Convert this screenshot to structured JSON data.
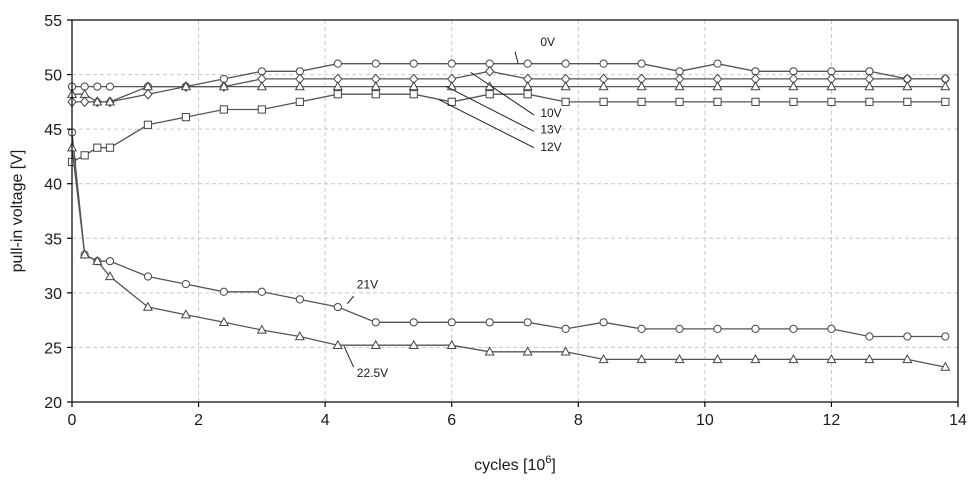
{
  "chart_data": {
    "type": "line",
    "title": "",
    "xlabel": "cycles [10",
    "xlabel_sup": "6",
    "xlabel_end": "]",
    "ylabel": "pull-in voltage [V]",
    "xlim": [
      0,
      14
    ],
    "ylim": [
      20,
      55
    ],
    "xticks": [
      0,
      2,
      4,
      6,
      8,
      10,
      12,
      14
    ],
    "yticks": [
      20,
      25,
      30,
      35,
      40,
      45,
      50,
      55
    ],
    "grid": true,
    "legend": "none",
    "series": [
      {
        "name": "0V",
        "marker": "circle",
        "x": [
          0,
          0.2,
          0.4,
          0.6,
          1.2,
          1.8,
          2.4,
          3.0,
          3.6,
          4.2,
          4.8,
          5.4,
          6.0,
          6.6,
          7.2,
          7.8,
          8.4,
          9.0,
          9.6,
          10.2,
          10.8,
          11.4,
          12.0,
          12.6,
          13.2,
          13.8
        ],
        "y": [
          48.9,
          48.9,
          48.9,
          48.9,
          48.9,
          48.9,
          49.6,
          50.3,
          50.3,
          51.0,
          51.0,
          51.0,
          51.0,
          51.0,
          51.0,
          51.0,
          51.0,
          51.0,
          50.3,
          51.0,
          50.3,
          50.3,
          50.3,
          50.3,
          49.6,
          49.6
        ]
      },
      {
        "name": "10V",
        "marker": "diamond",
        "x": [
          0,
          0.2,
          0.4,
          0.6,
          1.2,
          1.8,
          2.4,
          3.0,
          3.6,
          4.2,
          4.8,
          5.4,
          6.0,
          6.6,
          7.2,
          7.8,
          8.4,
          9.0,
          9.6,
          10.2,
          10.8,
          11.4,
          12.0,
          12.6,
          13.2,
          13.8
        ],
        "y": [
          47.5,
          47.5,
          47.5,
          47.5,
          48.2,
          48.9,
          48.9,
          49.6,
          49.6,
          49.6,
          49.6,
          49.6,
          49.6,
          50.3,
          49.6,
          49.6,
          49.6,
          49.6,
          49.6,
          49.6,
          49.6,
          49.6,
          49.6,
          49.6,
          49.6,
          49.6
        ]
      },
      {
        "name": "13V",
        "marker": "triangle",
        "x": [
          0,
          0.2,
          0.4,
          0.6,
          1.2,
          1.8,
          2.4,
          3.0,
          3.6,
          4.2,
          4.8,
          5.4,
          6.0,
          6.6,
          7.2,
          7.8,
          8.4,
          9.0,
          9.6,
          10.2,
          10.8,
          11.4,
          12.0,
          12.6,
          13.2,
          13.8
        ],
        "y": [
          48.2,
          48.2,
          47.5,
          47.5,
          48.9,
          48.9,
          48.9,
          48.9,
          48.9,
          48.9,
          48.9,
          48.9,
          48.9,
          48.9,
          48.9,
          48.9,
          48.9,
          48.9,
          48.9,
          48.9,
          48.9,
          48.9,
          48.9,
          48.9,
          48.9,
          48.9
        ]
      },
      {
        "name": "12V",
        "marker": "square",
        "x": [
          0,
          0.2,
          0.4,
          0.6,
          1.2,
          1.8,
          2.4,
          3.0,
          3.6,
          4.2,
          4.8,
          5.4,
          6.0,
          6.6,
          7.2,
          7.8,
          8.4,
          9.0,
          9.6,
          10.2,
          10.8,
          11.4,
          12.0,
          12.6,
          13.2,
          13.8
        ],
        "y": [
          42.0,
          42.6,
          43.3,
          43.3,
          45.4,
          46.1,
          46.8,
          46.8,
          47.5,
          48.2,
          48.2,
          48.2,
          47.5,
          48.2,
          48.2,
          47.5,
          47.5,
          47.5,
          47.5,
          47.5,
          47.5,
          47.5,
          47.5,
          47.5,
          47.5,
          47.5
        ]
      },
      {
        "name": "21V",
        "marker": "circle",
        "x": [
          0,
          0.2,
          0.4,
          0.6,
          1.2,
          1.8,
          2.4,
          3.0,
          3.6,
          4.2,
          4.8,
          5.4,
          6.0,
          6.6,
          7.2,
          7.8,
          8.4,
          9.0,
          9.6,
          10.2,
          10.8,
          11.4,
          12.0,
          12.6,
          13.2,
          13.8
        ],
        "y": [
          44.7,
          33.5,
          32.9,
          32.9,
          31.5,
          30.8,
          30.1,
          30.1,
          29.4,
          28.7,
          27.3,
          27.3,
          27.3,
          27.3,
          27.3,
          26.7,
          27.3,
          26.7,
          26.7,
          26.7,
          26.7,
          26.7,
          26.7,
          26.0,
          26.0,
          26.0
        ]
      },
      {
        "name": "22.5V",
        "marker": "triangle",
        "x": [
          0,
          0.2,
          0.4,
          0.6,
          1.2,
          1.8,
          2.4,
          3.0,
          3.6,
          4.2,
          4.8,
          5.4,
          6.0,
          6.6,
          7.2,
          7.8,
          8.4,
          9.0,
          9.6,
          10.2,
          10.8,
          11.4,
          12.0,
          12.6,
          13.2,
          13.8
        ],
        "y": [
          43.3,
          33.5,
          32.9,
          31.5,
          28.7,
          28.0,
          27.3,
          26.6,
          26.0,
          25.2,
          25.2,
          25.2,
          25.2,
          24.6,
          24.6,
          24.6,
          23.9,
          23.9,
          23.9,
          23.9,
          23.9,
          23.9,
          23.9,
          23.9,
          23.9,
          23.2
        ]
      }
    ]
  }
}
